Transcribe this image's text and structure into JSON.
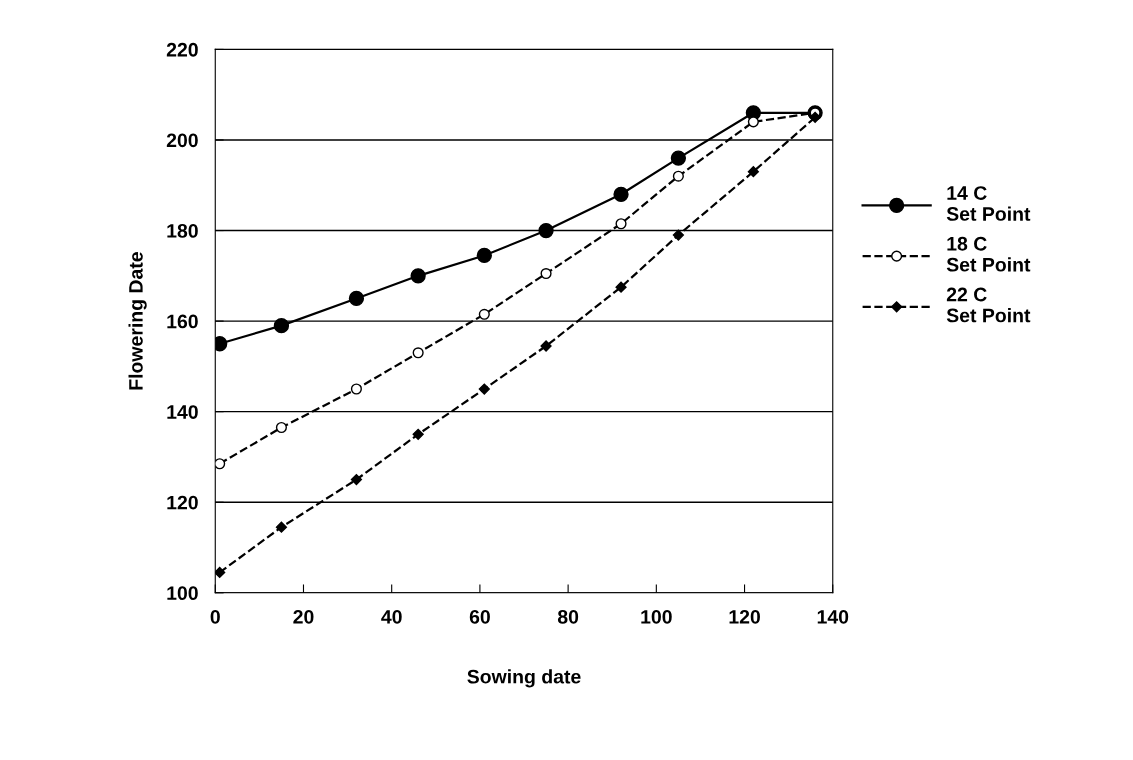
{
  "chart_data": {
    "type": "line",
    "xlabel": "Sowing date",
    "ylabel": "Flowering Date",
    "x": [
      1,
      15,
      32,
      46,
      61,
      75,
      92,
      105,
      122,
      136
    ],
    "series": [
      {
        "name": "14 C\nSet Point",
        "color": "#000000",
        "marker": "circle",
        "line_style": "solid",
        "values": [
          155,
          159,
          165,
          170,
          174.5,
          180,
          188,
          196,
          206,
          206
        ]
      },
      {
        "name": "18 C\nSet Point",
        "color": "#000000",
        "marker": "circle_open",
        "line_style": "dashed",
        "values": [
          128.5,
          136.5,
          145,
          153,
          161.5,
          170.5,
          181.5,
          192,
          204,
          206
        ]
      },
      {
        "name": "22 C\nSet Point",
        "color": "#000000",
        "marker": "diamond",
        "line_style": "dashed",
        "values": [
          104.5,
          114.5,
          125,
          135,
          145,
          154.5,
          167.5,
          179,
          193,
          205
        ]
      }
    ],
    "xlim": [
      0,
      140
    ],
    "xticks": [
      0,
      20,
      40,
      60,
      80,
      100,
      120,
      140
    ],
    "ylim": [
      100,
      220
    ],
    "yticks": [
      100,
      120,
      140,
      160,
      180,
      200,
      220
    ],
    "grid": "y",
    "legend": "right"
  }
}
